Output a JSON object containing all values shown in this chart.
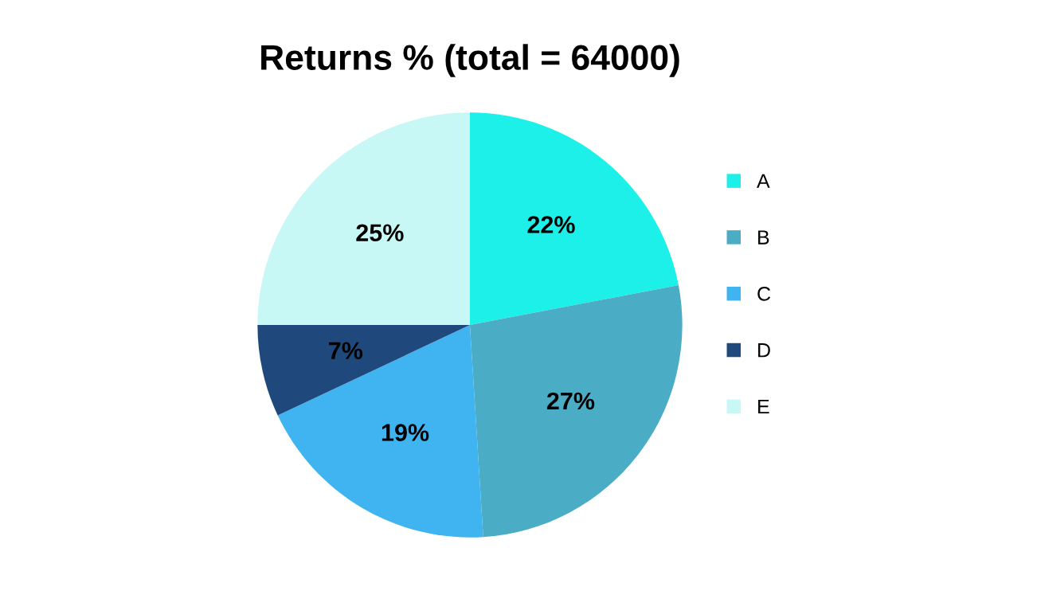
{
  "chart_data": {
    "type": "pie",
    "title": "Returns % (total = 64000)",
    "categories": [
      "A",
      "B",
      "C",
      "D",
      "E"
    ],
    "values": [
      22,
      27,
      19,
      7,
      25
    ],
    "colors": [
      "#1cf0e8",
      "#4bacc6",
      "#3fb4f0",
      "#1f497d",
      "#c8f8f6"
    ],
    "value_labels": [
      "22%",
      "27%",
      "19%",
      "7%",
      "25%"
    ],
    "legend": "right"
  }
}
